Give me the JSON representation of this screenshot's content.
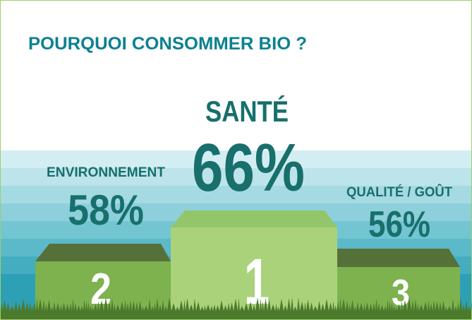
{
  "title": "POURQUOI CONSOMMER BIO ?",
  "podium": [
    {
      "label": "SANTÉ",
      "percent": "66%",
      "rank": "1"
    },
    {
      "label": "ENVIRONNEMENT",
      "percent": "58%",
      "rank": "2"
    },
    {
      "label": "QUALITÉ / GOÛT",
      "percent": "56%",
      "rank": "3"
    }
  ]
}
